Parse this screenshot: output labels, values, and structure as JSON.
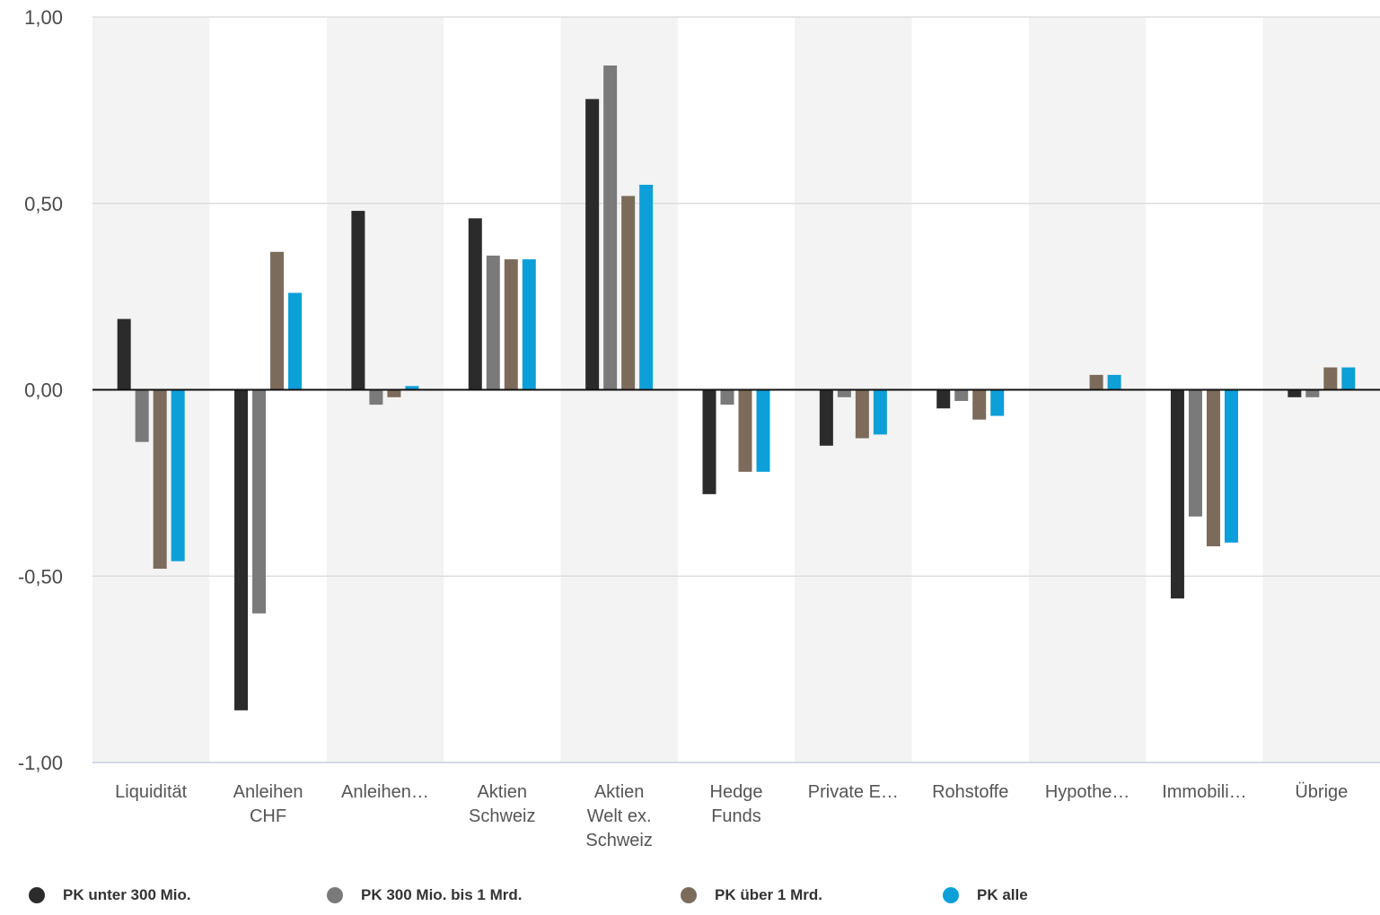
{
  "chart_data": {
    "type": "bar",
    "categories": [
      [
        "Liquidität"
      ],
      [
        "Anleihen",
        "CHF"
      ],
      [
        "Anleihen…"
      ],
      [
        "Aktien",
        "Schweiz"
      ],
      [
        "Aktien",
        "Welt ex.",
        "Schweiz"
      ],
      [
        "Hedge",
        "Funds"
      ],
      [
        "Private E…"
      ],
      [
        "Rohstoffe"
      ],
      [
        "Hypothe…"
      ],
      [
        "Immobili…"
      ],
      [
        "Übrige"
      ]
    ],
    "series": [
      {
        "name": "PK unter 300 Mio.",
        "color": "#2b2b2b",
        "values": [
          0.19,
          -0.86,
          0.48,
          0.46,
          0.78,
          -0.28,
          -0.15,
          -0.05,
          0.0,
          -0.56,
          -0.02
        ]
      },
      {
        "name": "PK 300 Mio. bis 1 Mrd.",
        "color": "#7a7a7a",
        "values": [
          -0.14,
          -0.6,
          -0.04,
          0.36,
          0.87,
          -0.04,
          -0.02,
          -0.03,
          0.0,
          -0.34,
          -0.02
        ]
      },
      {
        "name": "PK über 1 Mrd.",
        "color": "#7c6b5b",
        "values": [
          -0.48,
          0.37,
          -0.02,
          0.35,
          0.52,
          -0.22,
          -0.13,
          -0.08,
          0.04,
          -0.42,
          0.06
        ]
      },
      {
        "name": "PK alle",
        "color": "#0d9fd8",
        "values": [
          -0.46,
          0.26,
          0.01,
          0.35,
          0.55,
          -0.22,
          -0.12,
          -0.07,
          0.04,
          -0.41,
          0.06
        ]
      }
    ],
    "ylim": [
      -1.0,
      1.0
    ],
    "yticks": [
      1.0,
      0.5,
      0.0,
      -0.5,
      -1.0
    ],
    "ytick_labels": [
      "1,00",
      "0,50",
      "0,00",
      "-0,50",
      "-1,00"
    ],
    "grid": true,
    "alternating_band_color": "#f3f3f3",
    "legend_position": "bottom"
  }
}
